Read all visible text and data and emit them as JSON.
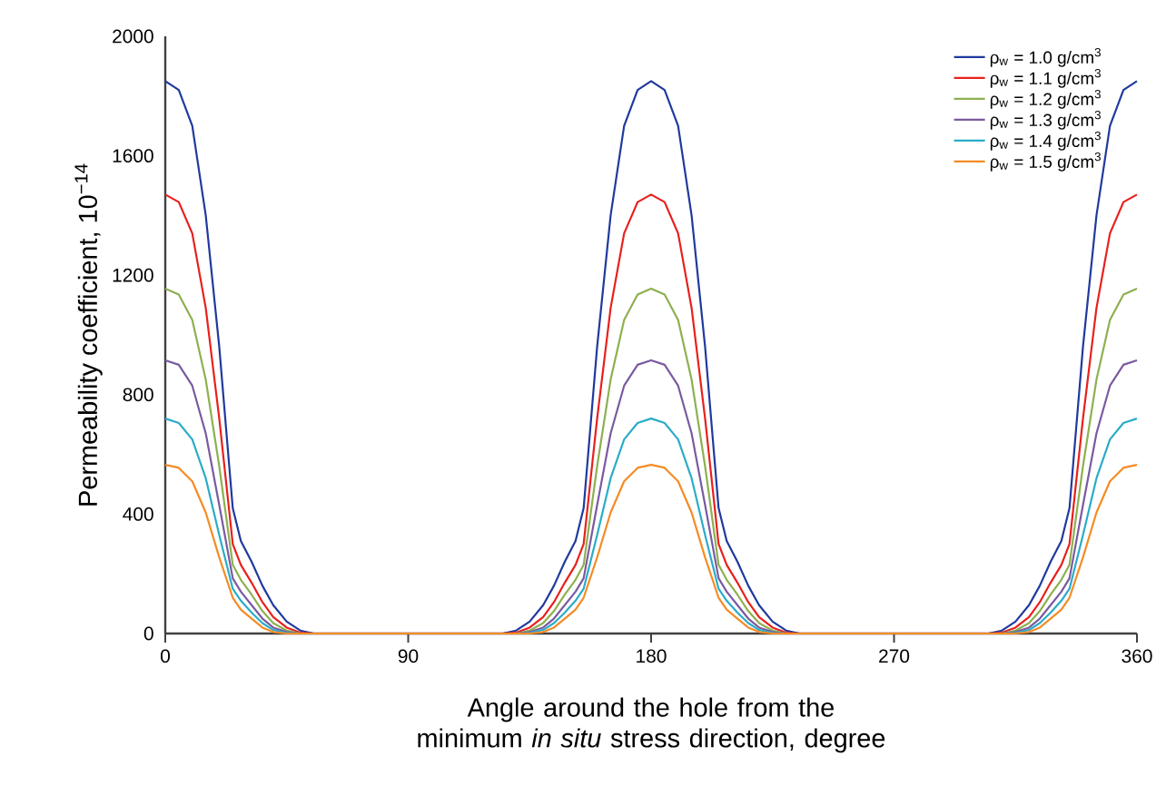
{
  "chart_data": {
    "type": "line",
    "xlabel": "Angle around the hole from the minimum *in situ* stress direction, degree",
    "ylabel": "Permeability coefficient, 10$^{−14}$",
    "x": [
      0,
      5,
      10,
      15,
      20,
      25,
      28,
      32,
      36,
      40,
      45,
      50,
      55,
      60,
      120,
      125,
      130,
      135,
      140,
      144,
      148,
      152,
      155,
      160,
      165,
      170,
      175,
      180,
      185,
      190,
      195,
      200,
      205,
      208,
      212,
      216,
      220,
      225,
      230,
      235,
      240,
      300,
      305,
      310,
      315,
      320,
      324,
      328,
      332,
      335,
      340,
      345,
      350,
      355,
      360
    ],
    "series": [
      {
        "name": "ρ$_{w}$ = 1.0 g/cm$^{3}$",
        "color": "#1f3a9e",
        "values": [
          1850,
          1820,
          1700,
          1400,
          960,
          420,
          310,
          240,
          160,
          95,
          40,
          10,
          0,
          0,
          0,
          0,
          10,
          40,
          95,
          160,
          240,
          310,
          420,
          960,
          1400,
          1700,
          1820,
          1850,
          1820,
          1700,
          1400,
          960,
          420,
          310,
          240,
          160,
          95,
          40,
          10,
          0,
          0,
          0,
          0,
          10,
          40,
          95,
          160,
          240,
          310,
          420,
          960,
          1400,
          1700,
          1820,
          1850
        ]
      },
      {
        "name": "ρ$_{w}$ = 1.1 g/cm$^{3}$",
        "color": "#e8201c",
        "values": [
          1470,
          1445,
          1340,
          1090,
          720,
          300,
          230,
          170,
          105,
          55,
          20,
          3,
          0,
          0,
          0,
          0,
          3,
          20,
          55,
          105,
          170,
          230,
          300,
          720,
          1090,
          1340,
          1445,
          1470,
          1445,
          1340,
          1090,
          720,
          300,
          230,
          170,
          105,
          55,
          20,
          3,
          0,
          0,
          0,
          0,
          3,
          20,
          55,
          105,
          170,
          230,
          300,
          720,
          1090,
          1340,
          1445,
          1470
        ]
      },
      {
        "name": "ρ$_{w}$ = 1.2 g/cm$^{3}$",
        "color": "#8db050",
        "values": [
          1155,
          1135,
          1050,
          850,
          560,
          230,
          180,
          130,
          75,
          35,
          10,
          0,
          0,
          0,
          0,
          0,
          0,
          10,
          35,
          75,
          130,
          180,
          230,
          560,
          850,
          1050,
          1135,
          1155,
          1135,
          1050,
          850,
          560,
          230,
          180,
          130,
          75,
          35,
          10,
          0,
          0,
          0,
          0,
          0,
          0,
          10,
          35,
          75,
          130,
          180,
          230,
          560,
          850,
          1050,
          1135,
          1155
        ]
      },
      {
        "name": "ρ$_{w}$ = 1.3 g/cm$^{3}$",
        "color": "#7a5aa0",
        "values": [
          915,
          900,
          830,
          670,
          430,
          185,
          140,
          95,
          50,
          20,
          5,
          0,
          0,
          0,
          0,
          0,
          0,
          5,
          20,
          50,
          95,
          140,
          185,
          430,
          670,
          830,
          900,
          915,
          900,
          830,
          670,
          430,
          185,
          140,
          95,
          50,
          20,
          5,
          0,
          0,
          0,
          0,
          0,
          0,
          5,
          20,
          50,
          95,
          140,
          185,
          430,
          670,
          830,
          900,
          915
        ]
      },
      {
        "name": "ρ$_{w}$ = 1.4 g/cm$^{3}$",
        "color": "#2aacc8",
        "values": [
          720,
          705,
          650,
          520,
          330,
          150,
          110,
          70,
          35,
          12,
          2,
          0,
          0,
          0,
          0,
          0,
          0,
          2,
          12,
          35,
          70,
          110,
          150,
          330,
          520,
          650,
          705,
          720,
          705,
          650,
          520,
          330,
          150,
          110,
          70,
          35,
          12,
          2,
          0,
          0,
          0,
          0,
          0,
          0,
          2,
          12,
          35,
          70,
          110,
          150,
          330,
          520,
          650,
          705,
          720
        ]
      },
      {
        "name": "ρ$_{w}$ = 1.5 g/cm$^{3}$",
        "color": "#f58b25",
        "values": [
          565,
          555,
          510,
          405,
          255,
          120,
          80,
          50,
          20,
          5,
          0,
          0,
          0,
          0,
          0,
          0,
          0,
          0,
          5,
          20,
          50,
          80,
          120,
          255,
          405,
          510,
          555,
          565,
          555,
          510,
          405,
          255,
          120,
          80,
          50,
          20,
          5,
          0,
          0,
          0,
          0,
          0,
          0,
          0,
          0,
          5,
          20,
          50,
          80,
          120,
          255,
          405,
          510,
          555,
          565
        ]
      }
    ],
    "xlim": [
      0,
      360
    ],
    "xticks": [
      0,
      90,
      180,
      270,
      360
    ],
    "ylim": [
      0,
      2000
    ],
    "yticks": [
      0,
      400,
      800,
      1200,
      1600,
      2000
    ],
    "grid": false,
    "legend": "top right",
    "marker": "none",
    "line_style": "solid"
  }
}
